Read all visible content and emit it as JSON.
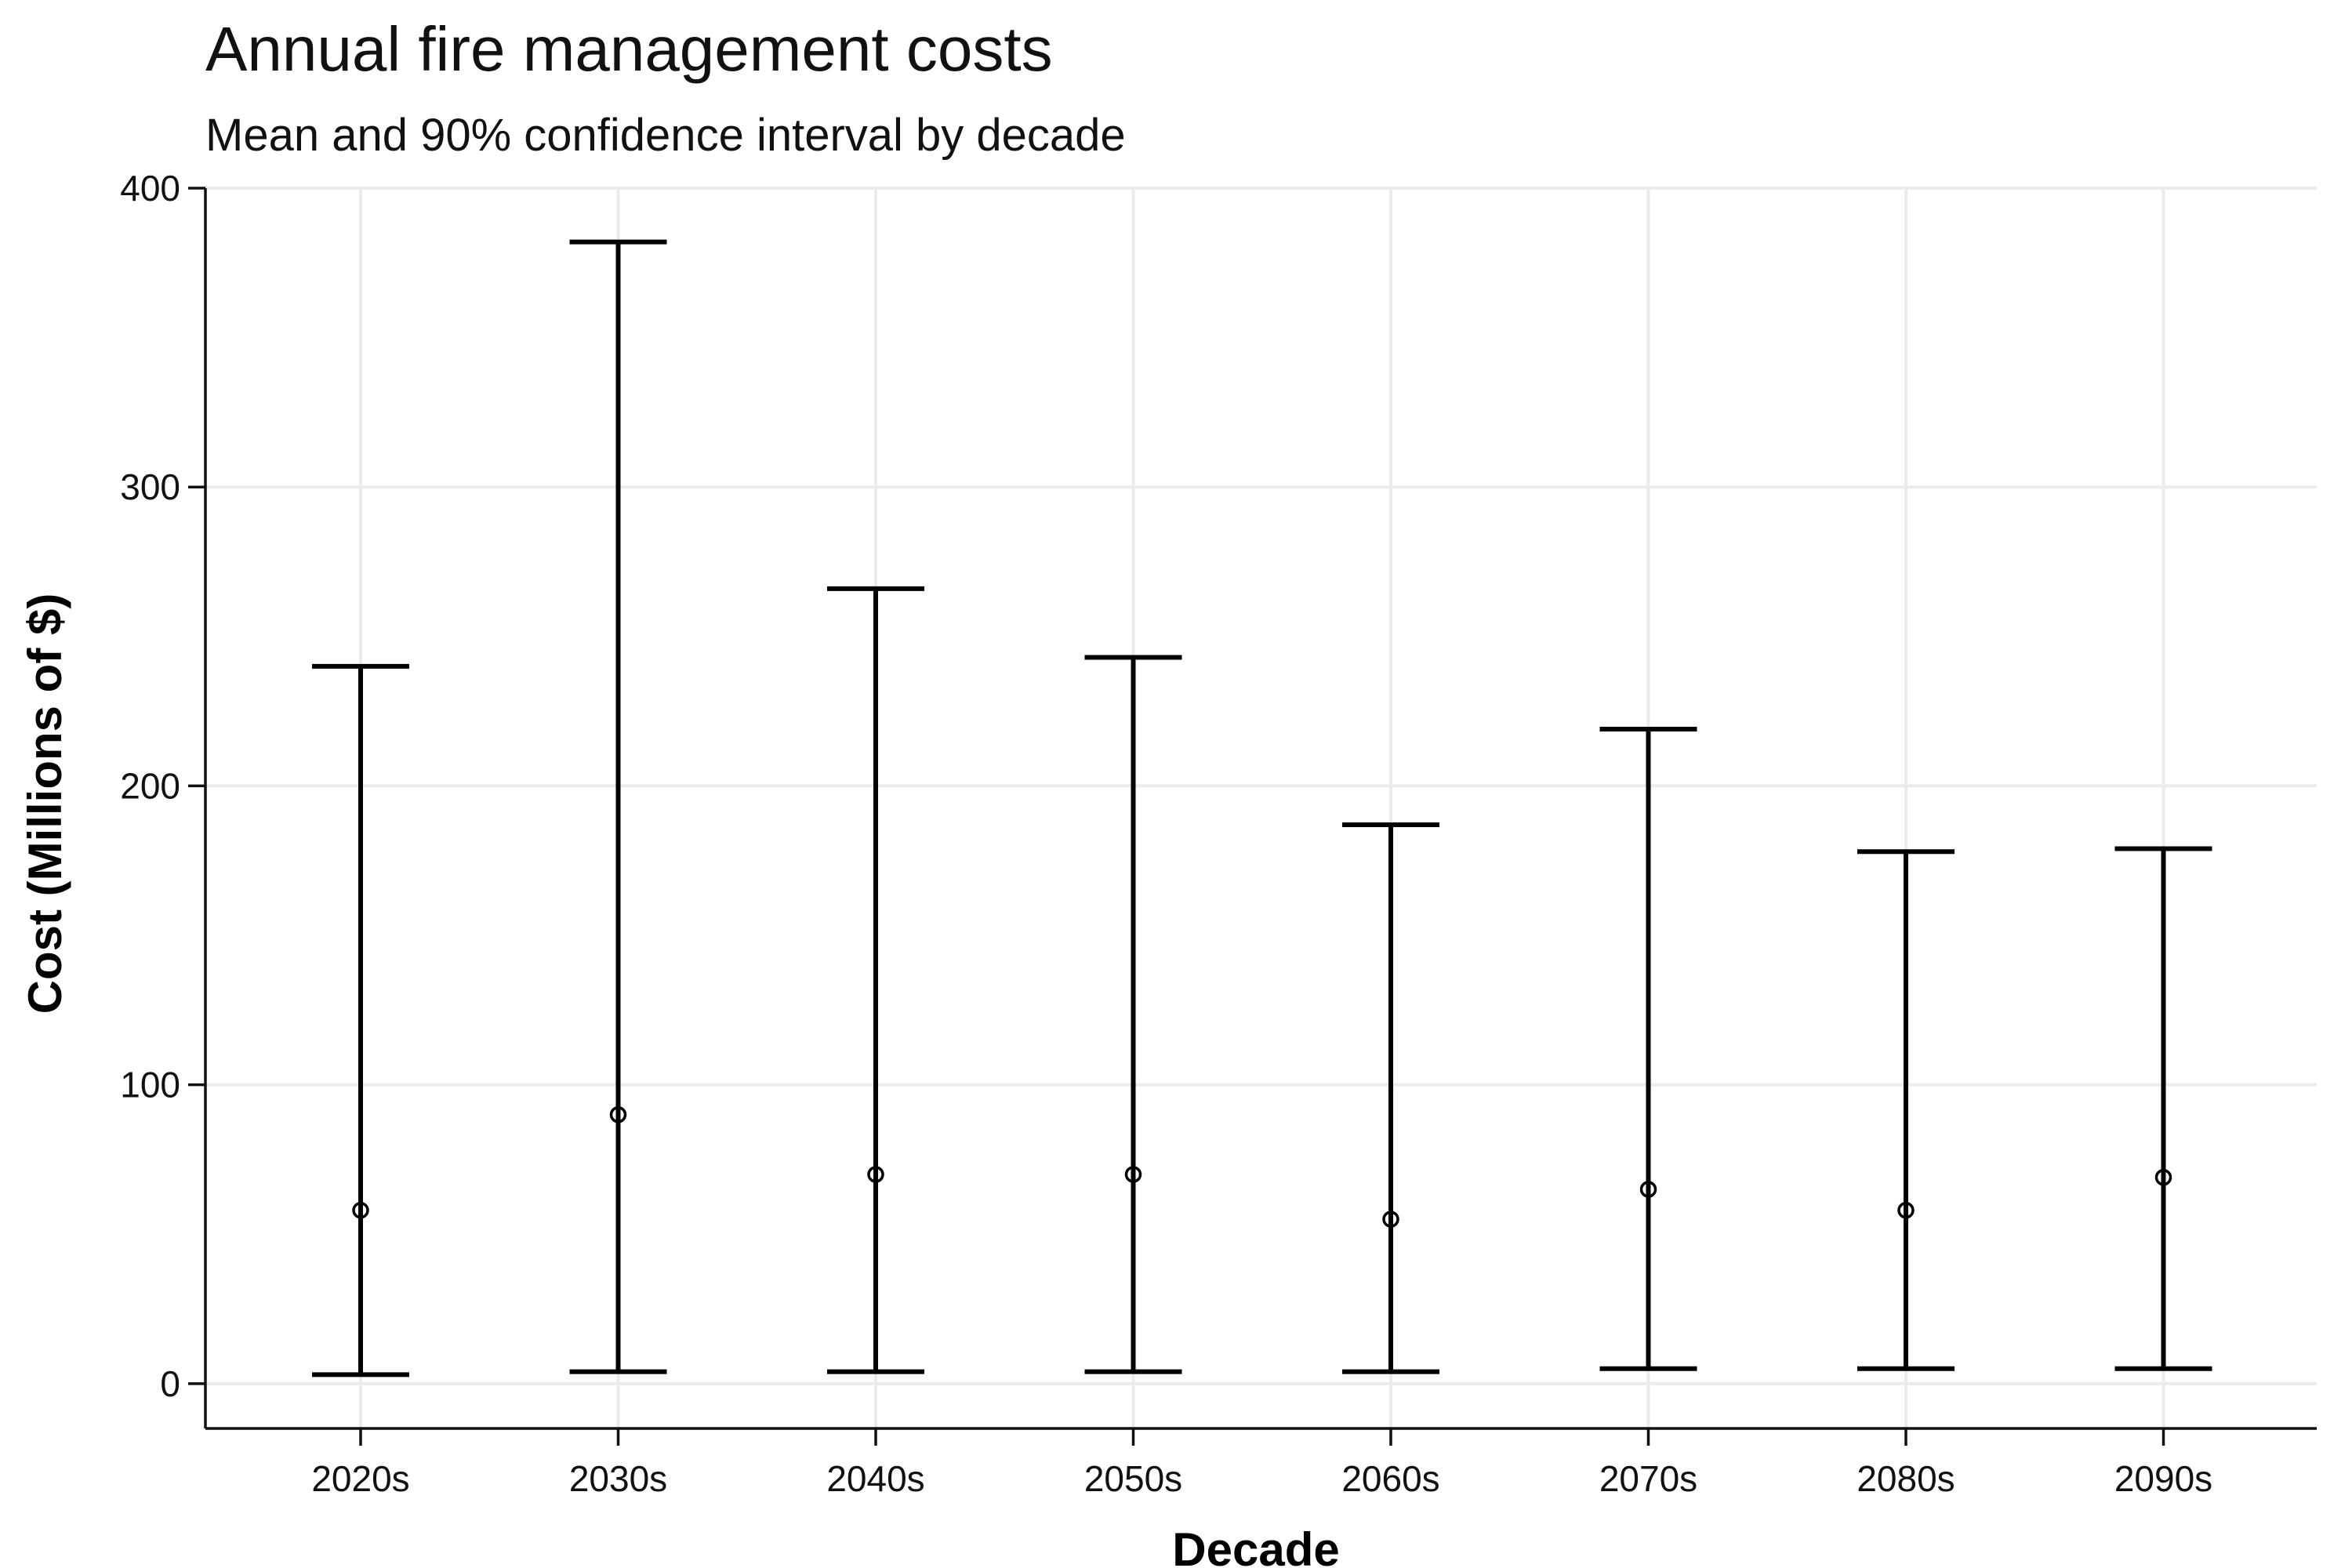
{
  "chart_data": {
    "type": "errorbar",
    "title": "Annual fire management costs",
    "subtitle": "Mean and 90% confidence interval by decade",
    "xlabel": "Decade",
    "ylabel": "Cost (Millions of $)",
    "categories": [
      "2020s",
      "2030s",
      "2040s",
      "2050s",
      "2060s",
      "2070s",
      "2080s",
      "2090s"
    ],
    "mean": [
      58,
      90,
      70,
      70,
      55,
      65,
      58,
      69
    ],
    "lower": [
      3,
      4,
      4,
      4,
      4,
      5,
      5,
      5
    ],
    "upper": [
      240,
      382,
      266,
      243,
      187,
      219,
      178,
      179
    ],
    "yticks": [
      0,
      100,
      200,
      300,
      400
    ],
    "ylim": [
      -15,
      400
    ],
    "grid": true,
    "colors": {
      "bars": "#000000",
      "grid": "#ebebeb",
      "axis": "#111111"
    }
  }
}
